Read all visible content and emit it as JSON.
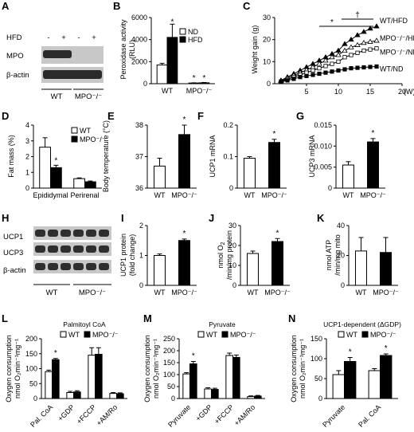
{
  "chart_data": [
    {
      "panel": "A",
      "type": "blot",
      "rows": [
        "HFD",
        "MPO",
        "β-actin"
      ],
      "hfd_marks": [
        "-",
        "+",
        "-",
        "+"
      ],
      "groups": [
        "WT",
        "MPO⁻/⁻"
      ]
    },
    {
      "panel": "B",
      "type": "bar",
      "ylabel": "Peroxidase activity (RLU)",
      "ylim": [
        0,
        6000
      ],
      "yticks": [
        "0",
        "2000",
        "4000",
        "6000"
      ],
      "categories": [
        "WT",
        "MPO⁻/⁻"
      ],
      "legend": "top-right",
      "series": [
        {
          "name": "ND",
          "color": "#ffffff",
          "values": [
            1700,
            60
          ],
          "errors": [
            150,
            20
          ]
        },
        {
          "name": "HFD",
          "color": "#000000",
          "values": [
            4200,
            80
          ],
          "errors": [
            1200,
            30
          ]
        }
      ],
      "significance": [
        "*",
        "*",
        "*"
      ]
    },
    {
      "panel": "C",
      "type": "line",
      "ylabel": "Weight gain (g)",
      "xunit": "(W)",
      "xlim": [
        0,
        20
      ],
      "ylim": [
        0,
        30
      ],
      "xticks": [
        "5",
        "10",
        "15",
        "20"
      ],
      "yticks": [
        "0",
        "10",
        "20",
        "30"
      ],
      "x": [
        1,
        2,
        3,
        4,
        5,
        6,
        7,
        8,
        9,
        10,
        11,
        12,
        13,
        14,
        15,
        16
      ],
      "series": [
        {
          "name": "WT/HFD",
          "values": [
            1.5,
            3,
            4.5,
            6,
            7.5,
            9,
            10.5,
            12,
            13.5,
            15,
            18,
            20,
            22,
            23.5,
            25,
            26
          ]
        },
        {
          "name": "MPO⁻/⁻/HFD",
          "values": [
            1.2,
            2.5,
            3.8,
            5,
            6.2,
            7.5,
            9,
            10.5,
            12,
            13,
            15,
            16.5,
            17.5,
            18.5,
            19,
            19.5
          ]
        },
        {
          "name": "MPO⁻/⁻/ND",
          "values": [
            1,
            2,
            3,
            4,
            5,
            6,
            7,
            8,
            9,
            10,
            12,
            13,
            14,
            15,
            15.5,
            16
          ]
        },
        {
          "name": "WT/ND",
          "values": [
            0.8,
            1.5,
            2.2,
            3,
            3.5,
            4,
            4.5,
            5,
            5.5,
            6,
            6.5,
            7,
            7.2,
            7.4,
            7.6,
            7.8
          ]
        }
      ],
      "significance": [
        "*",
        "†"
      ]
    },
    {
      "panel": "D",
      "type": "bar",
      "ylabel": "Fat mass (%)",
      "ylim": [
        0,
        4
      ],
      "yticks": [
        "0",
        "1",
        "2",
        "3",
        "4"
      ],
      "categories": [
        "Epididymal",
        "Perirenal"
      ],
      "legend": "top-right",
      "series": [
        {
          "name": "WT",
          "color": "#ffffff",
          "values": [
            2.6,
            0.6
          ],
          "errors": [
            0.6,
            0.05
          ]
        },
        {
          "name": "MPO⁻/⁻",
          "color": "#000000",
          "values": [
            1.3,
            0.4
          ],
          "errors": [
            0.15,
            0.05
          ]
        }
      ],
      "significance": [
        "*"
      ]
    },
    {
      "panel": "E",
      "type": "bar",
      "ylabel": "Body temperature (°C)",
      "ylim": [
        36,
        38
      ],
      "yticks": [
        "36",
        "37",
        "38"
      ],
      "categories": [
        "WT",
        "MPO⁻/⁻"
      ],
      "values": [
        36.7,
        37.7
      ],
      "errors": [
        0.25,
        0.3
      ],
      "colors": [
        "#ffffff",
        "#000000"
      ],
      "significance": [
        "*"
      ]
    },
    {
      "panel": "F",
      "type": "bar",
      "ylabel": "UCP1 mRNA",
      "ylim": [
        0,
        0.2
      ],
      "yticks": [
        "0",
        "0.1",
        "0.2"
      ],
      "categories": [
        "WT",
        "MPO⁻/⁻"
      ],
      "values": [
        0.095,
        0.145
      ],
      "errors": [
        0.005,
        0.01
      ],
      "colors": [
        "#ffffff",
        "#000000"
      ],
      "significance": [
        "*"
      ]
    },
    {
      "panel": "G",
      "type": "bar",
      "ylabel": "UCP3 mRNA",
      "ylim": [
        0,
        0.015
      ],
      "yticks": [
        "0",
        "0.005",
        "0.010",
        "0.015"
      ],
      "categories": [
        "WT",
        "MPO⁻/⁻"
      ],
      "values": [
        0.0055,
        0.011
      ],
      "errors": [
        0.0008,
        0.0008
      ],
      "colors": [
        "#ffffff",
        "#000000"
      ],
      "significance": [
        "*"
      ]
    },
    {
      "panel": "H",
      "type": "blot",
      "rows": [
        "UCP1",
        "UCP3",
        "β-actin"
      ],
      "groups": [
        "WT",
        "MPO⁻/⁻"
      ]
    },
    {
      "panel": "I",
      "type": "bar",
      "ylabel": "UCP1 protein (fold change)",
      "ylim": [
        0,
        2
      ],
      "yticks": [
        "0",
        "1",
        "2"
      ],
      "categories": [
        "WT",
        "MPO⁻/⁻"
      ],
      "values": [
        1.0,
        1.5
      ],
      "errors": [
        0.05,
        0.05
      ],
      "colors": [
        "#ffffff",
        "#000000"
      ],
      "significance": [
        "*"
      ]
    },
    {
      "panel": "J",
      "type": "bar",
      "ylabel_lines": [
        "nmol O",
        "/min/mg protein"
      ],
      "ylim": [
        0,
        30
      ],
      "yticks": [
        "0",
        "10",
        "20",
        "30"
      ],
      "categories": [
        "WT",
        "MPO⁻/⁻"
      ],
      "values": [
        16,
        22
      ],
      "errors": [
        1.2,
        1.5
      ],
      "colors": [
        "#ffffff",
        "#000000"
      ],
      "significance": [
        "*"
      ]
    },
    {
      "panel": "K",
      "type": "bar",
      "ylabel_lines": [
        "nmol ATP",
        "/min/mg mito"
      ],
      "ylim": [
        0,
        40
      ],
      "yticks": [
        "0",
        "20",
        "40"
      ],
      "categories": [
        "WT",
        "MPO⁻/⁻"
      ],
      "values": [
        23,
        22
      ],
      "errors": [
        9,
        10
      ],
      "colors": [
        "#ffffff",
        "#000000"
      ]
    },
    {
      "panel": "L",
      "type": "bar",
      "title": "Palmitoyl CoA",
      "ylabel_lines": [
        "Oxygen consumption",
        "nmol O₂min⁻¹mg⁻¹"
      ],
      "ylim": [
        0,
        200
      ],
      "yticks": [
        "0",
        "50",
        "100",
        "150",
        "200"
      ],
      "categories": [
        "Pal. CoA",
        "+GDP",
        "+FCCP",
        "+AM/Ro"
      ],
      "legend": "top",
      "series": [
        {
          "name": "WT",
          "color": "#ffffff",
          "values": [
            90,
            20,
            145,
            17
          ],
          "errors": [
            5,
            4,
            25,
            3
          ]
        },
        {
          "name": "MPO⁻/⁻",
          "color": "#000000",
          "values": [
            130,
            22,
            148,
            16
          ],
          "errors": [
            4,
            4,
            22,
            3
          ]
        }
      ],
      "significance": [
        "*"
      ]
    },
    {
      "panel": "M",
      "type": "bar",
      "title": "Pyruvate",
      "ylabel_lines": [
        "Oxygen consumption",
        "nmol O₂min⁻¹mg⁻¹"
      ],
      "ylim": [
        0,
        250
      ],
      "yticks": [
        "0",
        "50",
        "100",
        "150",
        "200",
        "250"
      ],
      "categories": [
        "Pyruvate",
        "+GDP",
        "+FCCP",
        "+AM/Ro"
      ],
      "legend": "top",
      "series": [
        {
          "name": "WT",
          "color": "#ffffff",
          "values": [
            103,
            40,
            180,
            8
          ],
          "errors": [
            5,
            5,
            10,
            3
          ]
        },
        {
          "name": "MPO⁻/⁻",
          "color": "#000000",
          "values": [
            145,
            38,
            172,
            10
          ],
          "errors": [
            10,
            5,
            10,
            3
          ]
        }
      ],
      "significance": [
        "*"
      ]
    },
    {
      "panel": "N",
      "type": "bar",
      "title": "UCP1-dependent (ΔGDP)",
      "ylabel_lines": [
        "Oxygen consumption",
        "nmol O₂min⁻¹mg⁻¹"
      ],
      "ylim": [
        0,
        150
      ],
      "yticks": [
        "0",
        "50",
        "100",
        "150"
      ],
      "categories": [
        "Pyruvate",
        "Pal. CoA"
      ],
      "legend": "top",
      "series": [
        {
          "name": "WT",
          "color": "#ffffff",
          "values": [
            60,
            70
          ],
          "errors": [
            10,
            5
          ]
        },
        {
          "name": "MPO⁻/⁻",
          "color": "#000000",
          "values": [
            93,
            108
          ],
          "errors": [
            10,
            4
          ]
        }
      ],
      "significance": [
        "*",
        "*"
      ]
    }
  ]
}
